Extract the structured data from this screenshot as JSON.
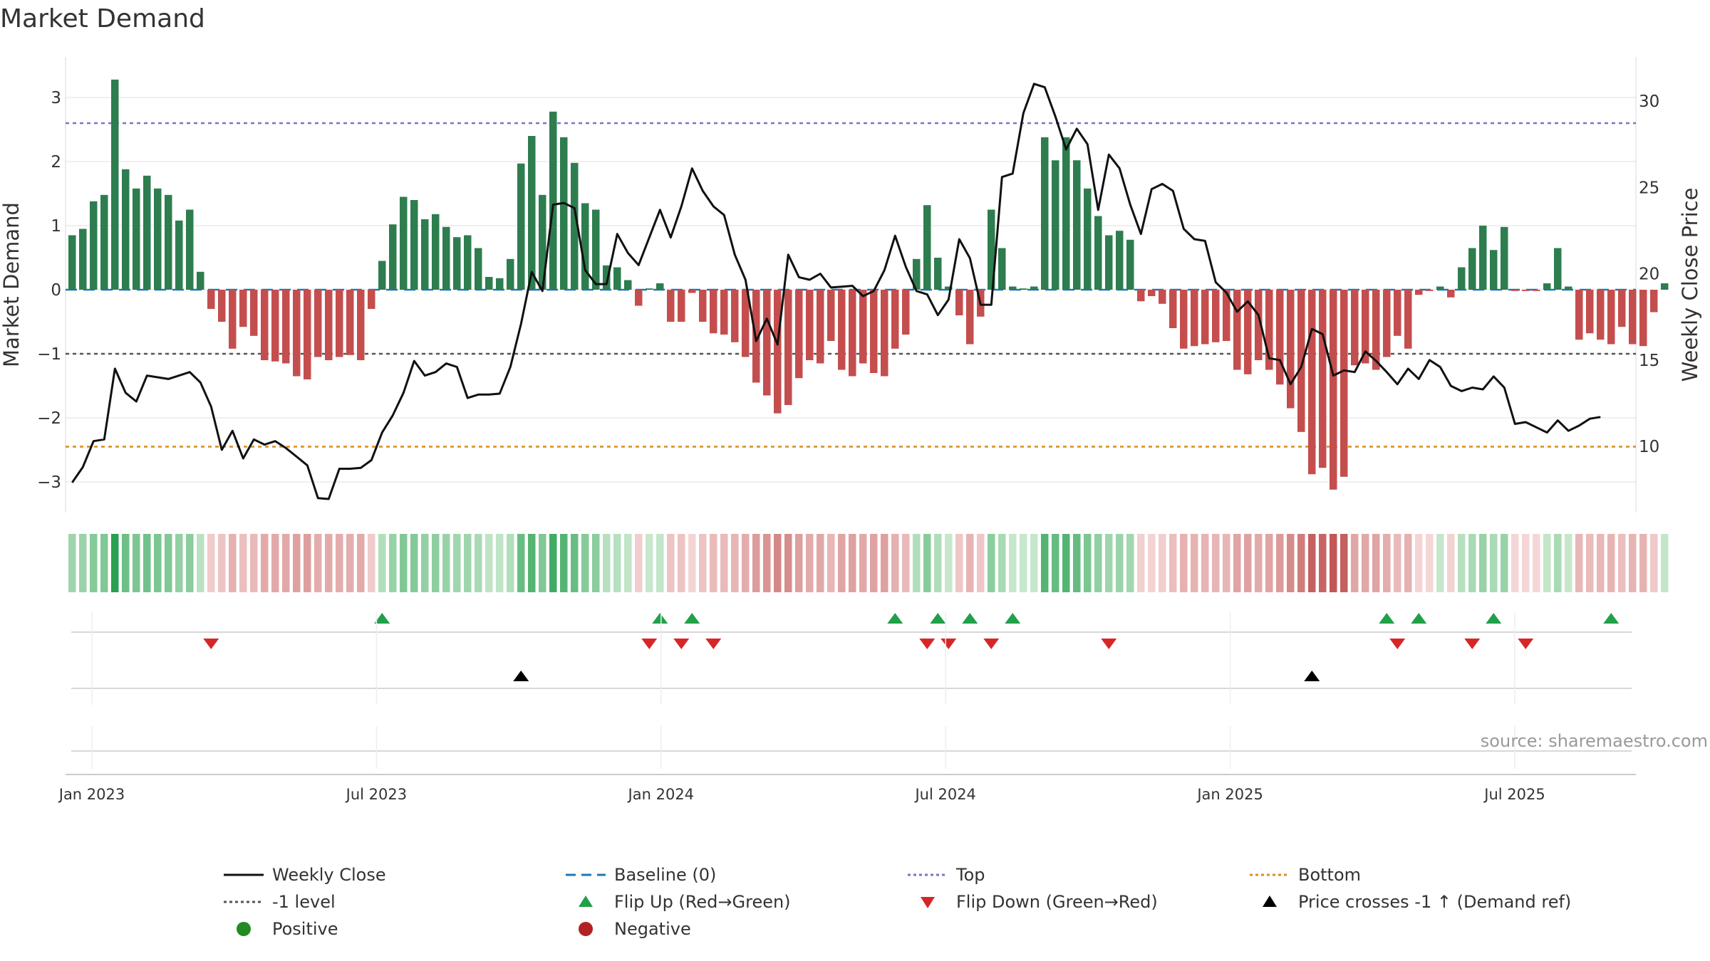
{
  "chart_data": {
    "type": "bar",
    "title": "Market Demand",
    "ylabel_left": "Market Demand",
    "ylabel_right": "Weekly Close Price",
    "y_left_ticks": [
      -3,
      -2,
      -1,
      0,
      1,
      2,
      3
    ],
    "y_left_tick_labels": [
      "−3",
      "−2",
      "−1",
      "0",
      "1",
      "2",
      "3"
    ],
    "y_right_ticks": [
      10,
      15,
      20,
      25,
      30
    ],
    "y_right_tick_labels": [
      "10",
      "15",
      "20",
      "25",
      "30"
    ],
    "x_ticks": [
      "Jan 2023",
      "Jul 2023",
      "Jan 2024",
      "Jul 2024",
      "Jan 2025",
      "Jul 2025"
    ],
    "reference_lines": {
      "top": 2.6,
      "bottom": -2.45,
      "minus_one_level": -1,
      "baseline": 0
    },
    "source": "source: sharemaestro.com",
    "demand_values": [
      0.85,
      0.95,
      1.38,
      1.48,
      3.28,
      1.88,
      1.58,
      1.78,
      1.58,
      1.48,
      1.08,
      1.25,
      0.28,
      -0.3,
      -0.5,
      -0.92,
      -0.58,
      -0.72,
      -1.1,
      -1.12,
      -1.15,
      -1.35,
      -1.4,
      -1.05,
      -1.1,
      -1.05,
      -1.02,
      -1.1,
      -0.3,
      0.45,
      1.02,
      1.45,
      1.4,
      1.1,
      1.18,
      0.98,
      0.82,
      0.85,
      0.65,
      0.2,
      0.18,
      0.48,
      1.97,
      2.4,
      1.48,
      2.78,
      2.38,
      1.98,
      1.35,
      1.25,
      0.38,
      0.35,
      0.15,
      -0.25,
      0.02,
      0.1,
      -0.5,
      -0.5,
      -0.05,
      -0.5,
      -0.68,
      -0.7,
      -0.82,
      -1.05,
      -1.45,
      -1.65,
      -1.93,
      -1.8,
      -1.38,
      -1.1,
      -1.15,
      -0.8,
      -1.25,
      -1.35,
      -1.15,
      -1.3,
      -1.35,
      -0.92,
      -0.7,
      0.48,
      1.32,
      0.5,
      0.05,
      -0.4,
      -0.85,
      -0.42,
      1.25,
      0.65,
      0.05,
      0.02,
      0.05,
      2.38,
      2.02,
      2.38,
      2.02,
      1.58,
      1.15,
      0.85,
      0.92,
      0.78,
      -0.18,
      -0.1,
      -0.22,
      -0.6,
      -0.92,
      -0.88,
      -0.85,
      -0.82,
      -0.8,
      -1.25,
      -1.32,
      -1.1,
      -1.25,
      -1.48,
      -1.85,
      -2.22,
      -2.88,
      -2.78,
      -3.12,
      -2.92,
      -1.18,
      -1.15,
      -1.25,
      -1.05,
      -0.72,
      -0.92,
      -0.08,
      -0.02,
      0.05,
      -0.12,
      0.35,
      0.65,
      1.0,
      0.62,
      0.98,
      -0.02,
      -0.02,
      -0.02,
      0.1,
      0.65,
      0.05,
      -0.78,
      -0.68,
      -0.78,
      -0.85,
      -0.58,
      -0.85,
      -0.88,
      -0.35,
      0.1
    ],
    "weekly_close": [
      7.9,
      8.8,
      10.3,
      10.4,
      14.5,
      13.1,
      12.6,
      14.1,
      14.0,
      13.9,
      14.1,
      14.3,
      13.7,
      12.3,
      9.8,
      10.9,
      9.3,
      10.4,
      10.1,
      10.3,
      9.9,
      9.4,
      8.9,
      7.0,
      6.95,
      8.7,
      8.7,
      8.75,
      9.2,
      10.8,
      11.8,
      13.1,
      14.95,
      14.1,
      14.3,
      14.8,
      14.6,
      12.8,
      13.0,
      13.0,
      13.05,
      14.6,
      17.1,
      20.1,
      19.0,
      24.0,
      24.1,
      23.8,
      20.2,
      19.4,
      19.4,
      22.3,
      21.2,
      20.5,
      22.1,
      23.7,
      22.1,
      23.9,
      26.1,
      24.8,
      23.9,
      23.4,
      21.1,
      19.65,
      16.1,
      17.4,
      15.9,
      21.1,
      19.8,
      19.65,
      20.0,
      19.2,
      19.25,
      19.3,
      18.7,
      19.0,
      20.2,
      22.2,
      20.4,
      19.0,
      18.8,
      17.6,
      18.5,
      22.0,
      20.9,
      18.2,
      18.2,
      25.6,
      25.8,
      29.3,
      31.0,
      30.8,
      29.1,
      27.2,
      28.4,
      27.5,
      23.7,
      26.9,
      26.1,
      24.0,
      22.3,
      24.9,
      25.2,
      24.8,
      22.6,
      22.0,
      21.9,
      19.5,
      18.9,
      17.8,
      18.4,
      17.6,
      15.1,
      15.0,
      13.6,
      14.6,
      16.8,
      16.5,
      14.1,
      14.4,
      14.3,
      15.5,
      14.95,
      14.3,
      13.6,
      14.5,
      13.9,
      15.0,
      14.6,
      13.5,
      13.2,
      13.4,
      13.3,
      14.05,
      13.4,
      11.3,
      11.4,
      11.1,
      10.8,
      11.5,
      10.9,
      11.2,
      11.6,
      11.7
    ],
    "flip_up_indices": [
      29,
      55,
      58,
      77,
      81,
      84,
      88,
      123,
      126,
      133,
      144
    ],
    "flip_down_indices": [
      13,
      54,
      57,
      60,
      80,
      82,
      86,
      97,
      124,
      131,
      136
    ],
    "price_cross_indices": [
      42,
      116
    ],
    "colors": {
      "positive_bar": "#2e7d4f",
      "negative_bar": "#c44e4e",
      "weekly_close": "#111111",
      "baseline": "#1f77b4",
      "top": "#7b72c6",
      "bottom": "#d98c1f",
      "minus_one": "#555555",
      "flip_up": "#21a04a",
      "flip_down": "#d62728",
      "price_cross": "#000000",
      "positive_dot": "#228b22",
      "negative_dot": "#b22222"
    },
    "legend": {
      "weekly_close": "Weekly Close",
      "baseline": "Baseline (0)",
      "top": "Top",
      "bottom": "Bottom",
      "minus_one": "-1 level",
      "flip_up": "Flip Up (Red→Green)",
      "flip_down": "Flip Down (Green→Red)",
      "price_cross": "Price crosses -1 ↑ (Demand ref)",
      "positive": "Positive",
      "negative": "Negative"
    }
  }
}
